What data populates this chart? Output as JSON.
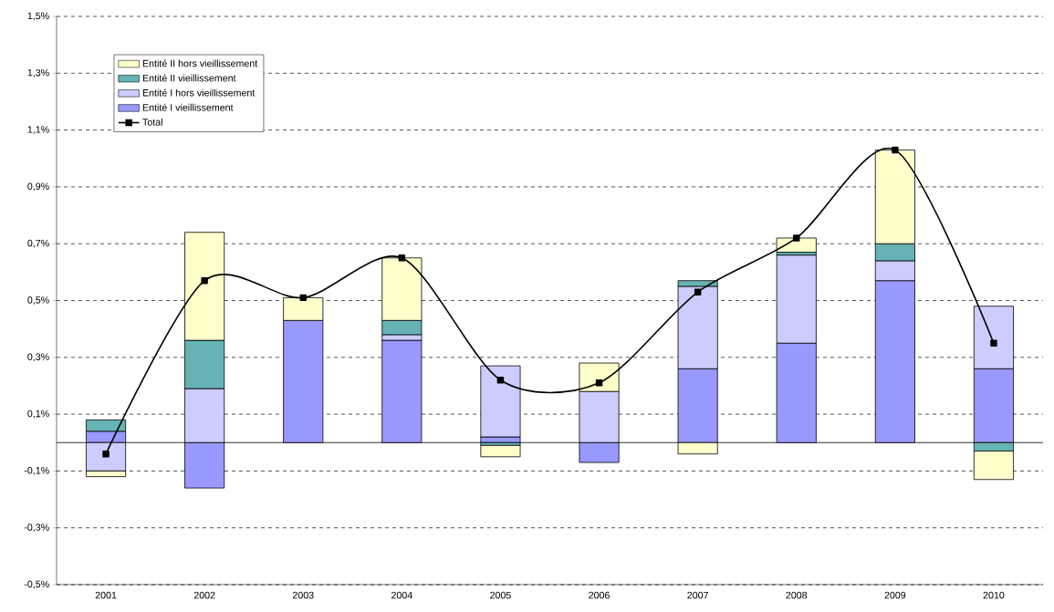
{
  "chart_data": {
    "type": "bar",
    "stacked": true,
    "categories": [
      "2001",
      "2002",
      "2003",
      "2004",
      "2005",
      "2006",
      "2007",
      "2008",
      "2009",
      "2010"
    ],
    "series": [
      {
        "name": "Entité I vieillissement",
        "color": "#9999ff",
        "values": [
          0.04,
          -0.16,
          0.43,
          0.36,
          0.02,
          -0.07,
          0.26,
          0.35,
          0.57,
          0.26
        ]
      },
      {
        "name": "Entité I hors vieillissement",
        "color": "#ccccff",
        "values": [
          -0.1,
          0.19,
          0,
          0.02,
          0.25,
          0.18,
          0.29,
          0.31,
          0.07,
          0.22
        ]
      },
      {
        "name": "Entité II vieillissement",
        "color": "#66b3b3",
        "values": [
          0.04,
          0.17,
          0,
          0.05,
          -0.01,
          0,
          0.02,
          0.01,
          0.06,
          -0.03
        ]
      },
      {
        "name": "Entité II hors vieillissement",
        "color": "#ffffcc",
        "values": [
          -0.02,
          0.38,
          0.08,
          0.22,
          -0.04,
          0.1,
          -0.04,
          0.05,
          0.33,
          -0.1
        ]
      },
      {
        "name": "Total",
        "type": "line",
        "color": "#000000",
        "marker": "square",
        "line_style": "solid",
        "values": [
          -0.04,
          0.57,
          0.51,
          0.65,
          0.22,
          0.21,
          0.53,
          0.72,
          1.03,
          0.35
        ]
      }
    ],
    "ylim": [
      -0.5,
      1.5
    ],
    "yticks": [
      {
        "value": -0.5,
        "label": "-0,5%"
      },
      {
        "value": -0.3,
        "label": "-0,3%"
      },
      {
        "value": -0.1,
        "label": "-0,1%"
      },
      {
        "value": 0.1,
        "label": "0,1%"
      },
      {
        "value": 0.3,
        "label": "0,3%"
      },
      {
        "value": 0.5,
        "label": "0,5%"
      },
      {
        "value": 0.7,
        "label": "0,7%"
      },
      {
        "value": 0.9,
        "label": "0,9%"
      },
      {
        "value": 1.1,
        "label": "1,1%"
      },
      {
        "value": 1.3,
        "label": "1,3%"
      },
      {
        "value": 1.5,
        "label": "1,5%"
      }
    ],
    "grid": "y",
    "legend": "top left"
  }
}
